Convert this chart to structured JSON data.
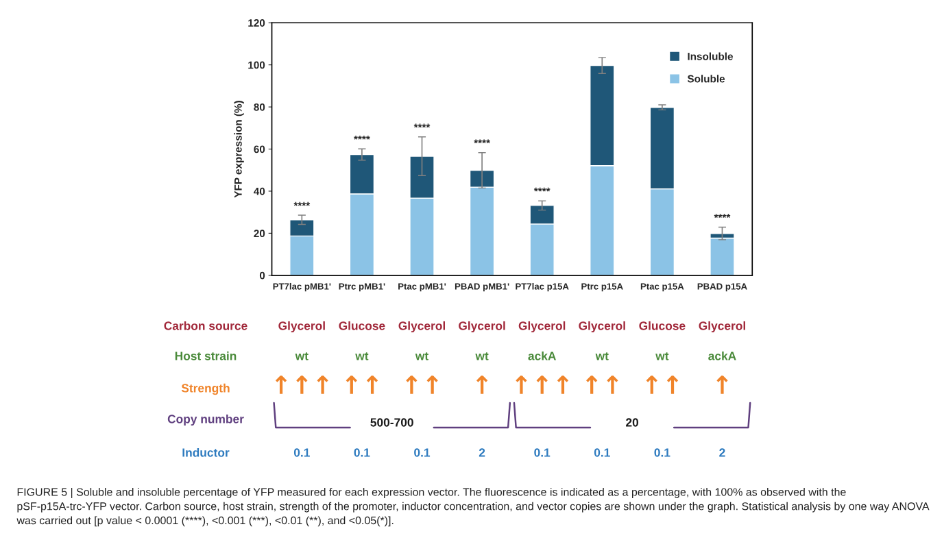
{
  "chart_data": {
    "type": "bar",
    "stacked": true,
    "ylabel": "YFP expression (%)",
    "categories": [
      "PT7lac pMB1'",
      "Ptrc pMB1'",
      "Ptac pMB1'",
      "PBAD pMB1'",
      "PT7lac p15A",
      "Ptrc p15A",
      "Ptac p15A",
      "PBAD p15A"
    ],
    "series": [
      {
        "name": "Soluble",
        "color": "#8bc3e6",
        "values": [
          18.7,
          38.7,
          36.7,
          41.9,
          24.4,
          52.1,
          41.1,
          17.7
        ]
      },
      {
        "name": "Insoluble",
        "color": "#1f5778",
        "values": [
          7.7,
          18.7,
          19.9,
          8.0,
          8.8,
          47.6,
          38.7,
          2.2
        ],
        "errors": [
          2.2,
          2.7,
          9.2,
          8.4,
          2.2,
          3.8,
          1.2,
          3.0
        ],
        "value_labels": [
          "****",
          "****",
          "****",
          "****",
          "****",
          null,
          null,
          "****"
        ]
      }
    ],
    "ylim": [
      0,
      120
    ],
    "yticks": [
      0,
      20,
      40,
      60,
      80,
      100,
      120
    ],
    "grid": false,
    "legend": "top right",
    "annotations": [
      "Carbon source",
      "Host strain",
      "Strength",
      "Copy number",
      "Inductor",
      "Glycerol",
      "Glucose",
      "Glycerol",
      "Glycerol",
      "Glycerol",
      "Glycerol",
      "Glucose",
      "Glycerol",
      "wt",
      "wt",
      "wt",
      "wt",
      "ackA",
      "wt",
      "wt",
      "ackA",
      "↑↑↑",
      "↑↑",
      "↑↑",
      "↑",
      "↑↑↑",
      "↑↑",
      "↑↑",
      "↑",
      "500-700",
      "20",
      "0.1",
      "0.1",
      "0.1",
      "2",
      "0.1",
      "0.1",
      "0.1",
      "2",
      "FIGURE 5 | Soluble and insoluble percentage of YFP measured for each expression vector. The fluorescence is indicated as a percentage, with 100% as observed with the pSF-p15A-trc-YFP vector. Carbon source, host strain, strength of the promoter, inductor concentration, and vector copies are shown under the graph. Statistical analysis by one way ANOVA was carried out [p value < 0.0001 (****), <0.001 (***), <0.01 (**), and <0.05(*)]."
    ]
  }
}
